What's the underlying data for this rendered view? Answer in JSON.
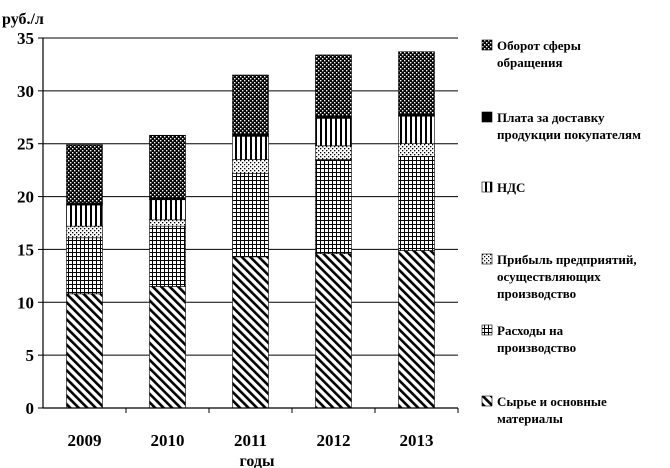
{
  "chart_data": {
    "type": "bar",
    "stacked": true,
    "ylabel": "руб./л",
    "xlabel": "годы",
    "ylim": [
      0,
      35
    ],
    "yticks": [
      0,
      5,
      10,
      15,
      20,
      25,
      30,
      35
    ],
    "grid": true,
    "legend_position": "right",
    "categories": [
      "2009",
      "2010",
      "2011",
      "2012",
      "2013"
    ],
    "series": [
      {
        "name": "Сырье и основные материалы",
        "pattern": "diag",
        "values": [
          10.8,
          11.5,
          14.3,
          14.6,
          14.9
        ]
      },
      {
        "name": "Расходы на производство",
        "pattern": "grid",
        "values": [
          5.3,
          5.7,
          7.9,
          8.9,
          8.9
        ]
      },
      {
        "name": "Прибыль предприятий, осуществляющих производство",
        "pattern": "dots",
        "values": [
          1.1,
          0.6,
          1.3,
          1.3,
          1.2
        ]
      },
      {
        "name": "НДС",
        "pattern": "vert",
        "values": [
          2.0,
          1.9,
          2.2,
          2.6,
          2.6
        ]
      },
      {
        "name": "Плата за доставку продукции покупателям",
        "pattern": "solid",
        "values": [
          0.2,
          0.2,
          0.2,
          0.2,
          0.2
        ]
      },
      {
        "name": "Оборот сферы обращения",
        "pattern": "checker",
        "values": [
          5.5,
          5.9,
          5.6,
          5.8,
          5.9
        ]
      }
    ]
  },
  "legend": [
    {
      "lines": [
        "Оборот сферы",
        "обращения"
      ],
      "pattern": "checker"
    },
    {
      "lines": [
        "Плата за доставку",
        "продукции покупателям"
      ],
      "pattern": "solid"
    },
    {
      "lines": [
        "НДС"
      ],
      "pattern": "vert"
    },
    {
      "lines": [
        "Прибыль предприятий,",
        "осуществляющих",
        "производство"
      ],
      "pattern": "dots"
    },
    {
      "lines": [
        "Расходы на",
        "производство"
      ],
      "pattern": "grid"
    },
    {
      "lines": [
        "Сырье и основные",
        "материалы"
      ],
      "pattern": "diag"
    }
  ],
  "colors": {
    "ink": "#000000",
    "background": "#ffffff"
  }
}
